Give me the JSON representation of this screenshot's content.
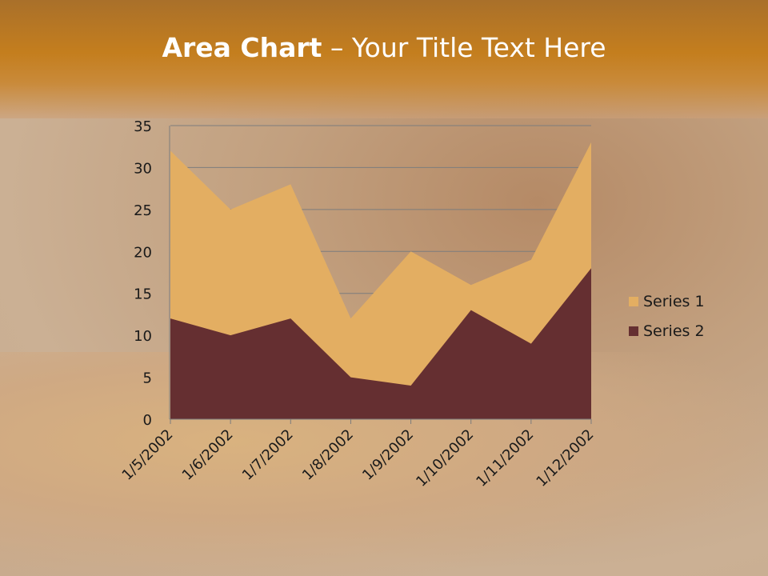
{
  "title": {
    "bold": "Area Chart",
    "rest": " – Your Title Text Here"
  },
  "chart_data": {
    "type": "area",
    "categories": [
      "1/5/2002",
      "1/6/2002",
      "1/7/2002",
      "1/8/2002",
      "1/9/2002",
      "1/10/2002",
      "1/11/2002",
      "1/12/2002"
    ],
    "series": [
      {
        "name": "Series 1",
        "values": [
          32,
          25,
          28,
          12,
          20,
          16,
          19,
          33
        ],
        "color": "#e3ae62"
      },
      {
        "name": "Series 2",
        "values": [
          12,
          10,
          12,
          5,
          4,
          13,
          9,
          18
        ],
        "color": "#652f31"
      }
    ],
    "ylim": [
      0,
      35
    ],
    "yticks": [
      0,
      5,
      10,
      15,
      20,
      25,
      30,
      35
    ],
    "grid": true,
    "legend": "right"
  }
}
